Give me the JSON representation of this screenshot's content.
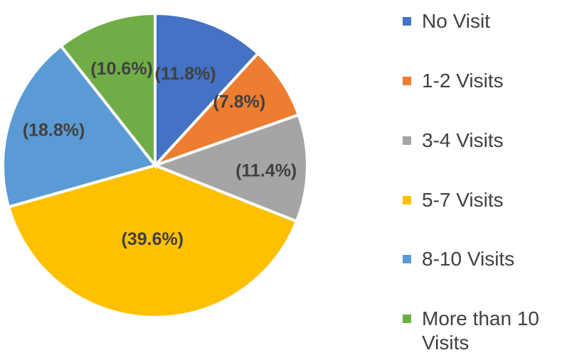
{
  "chart_data": {
    "type": "pie",
    "title": "",
    "legend_position": "right",
    "start_angle": "12 o'clock",
    "direction": "clockwise",
    "categories": [
      "No Visit",
      "1-2 Visits",
      "3-4 Visits",
      "5-7 Visits",
      "8-10 Visits",
      "More than 10 Visits"
    ],
    "values": [
      11.8,
      7.8,
      11.4,
      39.6,
      18.8,
      10.6
    ],
    "labels": [
      "(11.8%)",
      "(7.8%)",
      "(11.4%)",
      "(39.6%)",
      "(18.8%)",
      "(10.6%)"
    ],
    "colors": [
      "#4472C4",
      "#ED7D31",
      "#A5A5A5",
      "#FFC000",
      "#5B9BD5",
      "#70AD47"
    ]
  }
}
